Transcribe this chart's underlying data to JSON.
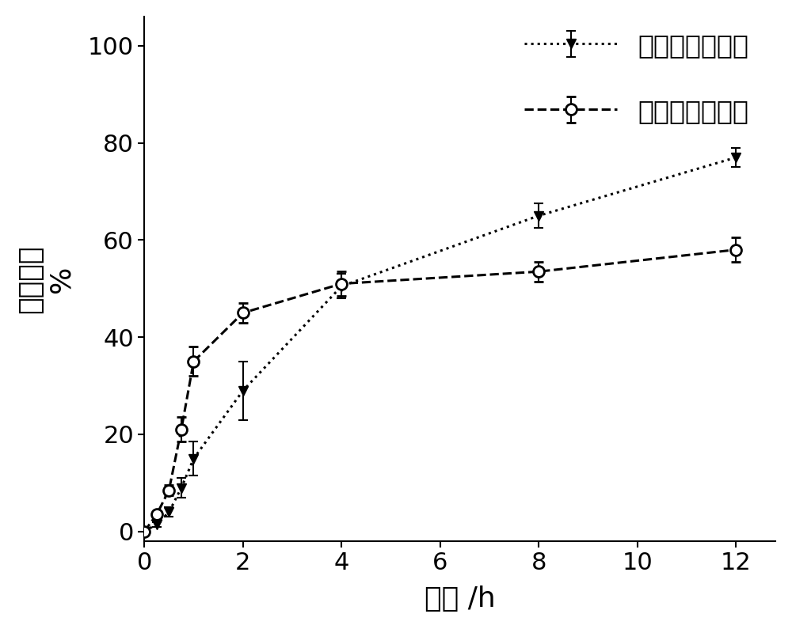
{
  "series1_label": "异甘草素自微乳",
  "series2_label": "异甘草素混悬液",
  "series1_x": [
    0,
    0.25,
    0.5,
    0.75,
    1.0,
    2.0,
    4.0,
    8.0,
    12.0
  ],
  "series1_y": [
    0,
    1.5,
    4.0,
    9.0,
    15.0,
    29.0,
    50.5,
    65.0,
    77.0
  ],
  "series1_yerr": [
    0,
    0.5,
    1.0,
    2.0,
    3.5,
    6.0,
    2.5,
    2.5,
    2.0
  ],
  "series2_x": [
    0,
    0.25,
    0.5,
    0.75,
    1.0,
    2.0,
    4.0,
    8.0,
    12.0
  ],
  "series2_y": [
    0,
    3.5,
    8.5,
    21.0,
    35.0,
    45.0,
    51.0,
    53.5,
    58.0
  ],
  "series2_yerr": [
    0,
    0.5,
    1.0,
    2.5,
    3.0,
    2.0,
    2.5,
    2.0,
    2.5
  ],
  "xlabel": "时间 /h",
  "ylabel_line1": "释放度，",
  "ylabel_line2": "%",
  "xlim": [
    0,
    12.8
  ],
  "ylim": [
    -2,
    106
  ],
  "xticks": [
    0,
    2,
    4,
    6,
    8,
    10,
    12
  ],
  "yticks": [
    0,
    20,
    40,
    60,
    80,
    100
  ],
  "background_color": "#ffffff",
  "line_color": "#000000",
  "tick_fontsize": 22,
  "label_fontsize": 26,
  "legend_fontsize": 24
}
